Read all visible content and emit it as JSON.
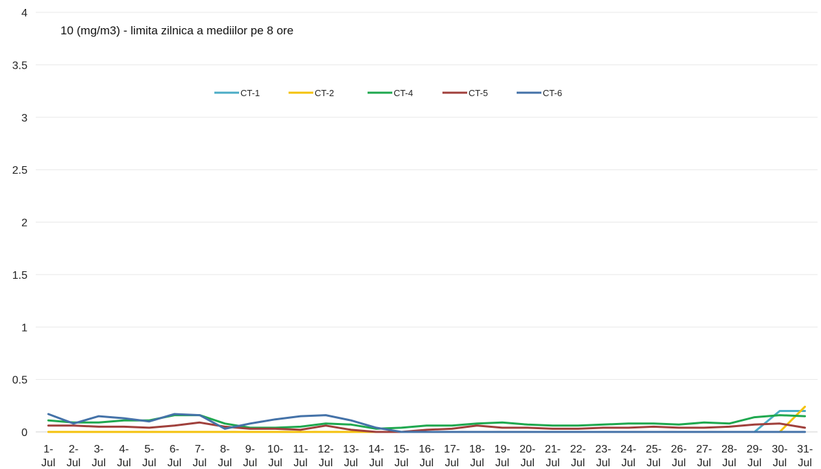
{
  "chart_data": {
    "type": "line",
    "annotation": "10 (mg/m3) - limita zilnica a mediilor pe 8 ore",
    "ylim": [
      0,
      4
    ],
    "yticks": [
      "0",
      "0.5",
      "1",
      "1.5",
      "2",
      "2.5",
      "3",
      "3.5",
      "4"
    ],
    "grid": true,
    "legend_position": "top-center",
    "categories": [
      "1-Jul",
      "2-Jul",
      "3-Jul",
      "4-Jul",
      "5-Jul",
      "6-Jul",
      "7-Jul",
      "8-Jul",
      "9-Jul",
      "10-Jul",
      "11-Jul",
      "12-Jul",
      "13-Jul",
      "14-Jul",
      "15-Jul",
      "16-Jul",
      "17-Jul",
      "18-Jul",
      "19-Jul",
      "20-Jul",
      "21-Jul",
      "22-Jul",
      "23-Jul",
      "24-Jul",
      "25-Jul",
      "26-Jul",
      "27-Jul",
      "28-Jul",
      "29-Jul",
      "30-Jul",
      "31-Jul"
    ],
    "tick_labels": [
      [
        "1-",
        "Jul"
      ],
      [
        "2-",
        "Jul"
      ],
      [
        "3-",
        "Jul"
      ],
      [
        "4-",
        "Jul"
      ],
      [
        "5-",
        "Jul"
      ],
      [
        "6-",
        "Jul"
      ],
      [
        "7-",
        "Jul"
      ],
      [
        "8-",
        "Jul"
      ],
      [
        "9-",
        "Jul"
      ],
      [
        "10-",
        "Jul"
      ],
      [
        "11-",
        "Jul"
      ],
      [
        "12-",
        "Jul"
      ],
      [
        "13-",
        "Jul"
      ],
      [
        "14-",
        "Jul"
      ],
      [
        "15-",
        "Jul"
      ],
      [
        "16-",
        "Jul"
      ],
      [
        "17-",
        "Jul"
      ],
      [
        "18-",
        "Jul"
      ],
      [
        "19-",
        "Jul"
      ],
      [
        "20-",
        "Jul"
      ],
      [
        "21-",
        "Jul"
      ],
      [
        "22-",
        "Jul"
      ],
      [
        "23-",
        "Jul"
      ],
      [
        "24-",
        "Jul"
      ],
      [
        "25-",
        "Jul"
      ],
      [
        "26-",
        "Jul"
      ],
      [
        "27-",
        "Jul"
      ],
      [
        "28-",
        "Jul"
      ],
      [
        "29-",
        "Jul"
      ],
      [
        "30-",
        "Jul"
      ],
      [
        "31-",
        "Jul"
      ]
    ],
    "series": [
      {
        "name": "CT-1",
        "color": "#4BACC6",
        "values": [
          null,
          null,
          null,
          null,
          null,
          null,
          null,
          null,
          null,
          null,
          null,
          null,
          null,
          null,
          null,
          null,
          null,
          null,
          null,
          null,
          null,
          null,
          null,
          null,
          null,
          null,
          null,
          null,
          0.0,
          0.2,
          0.2
        ]
      },
      {
        "name": "CT-2",
        "color": "#F4C20D",
        "values": [
          0.0,
          0.0,
          0.0,
          0.0,
          0.0,
          0.0,
          0.0,
          0.0,
          0.0,
          0.0,
          0.0,
          0.0,
          0.0,
          0.0,
          0.0,
          0.0,
          0.0,
          0.0,
          0.0,
          0.0,
          0.0,
          0.0,
          0.0,
          0.0,
          0.0,
          0.0,
          0.0,
          0.0,
          0.0,
          0.0,
          0.24
        ]
      },
      {
        "name": "CT-4",
        "color": "#1FA84F",
        "values": [
          0.11,
          0.09,
          0.09,
          0.11,
          0.11,
          0.16,
          0.16,
          0.08,
          0.04,
          0.04,
          0.05,
          0.08,
          0.07,
          0.03,
          0.04,
          0.06,
          0.06,
          0.08,
          0.09,
          0.07,
          0.06,
          0.06,
          0.07,
          0.08,
          0.08,
          0.07,
          0.09,
          0.08,
          0.14,
          0.16,
          0.15
        ]
      },
      {
        "name": "CT-5",
        "color": "#A0403C",
        "values": [
          0.06,
          0.06,
          0.05,
          0.05,
          0.04,
          0.06,
          0.09,
          0.05,
          0.03,
          0.03,
          0.02,
          0.06,
          0.02,
          0.0,
          0.0,
          0.02,
          0.03,
          0.06,
          0.04,
          0.04,
          0.03,
          0.03,
          0.04,
          0.04,
          0.05,
          0.04,
          0.04,
          0.05,
          0.07,
          0.08,
          0.04
        ]
      },
      {
        "name": "CT-6",
        "color": "#4472A8",
        "values": [
          0.17,
          0.08,
          0.15,
          0.13,
          0.1,
          0.17,
          0.16,
          0.03,
          0.08,
          0.12,
          0.15,
          0.16,
          0.11,
          0.04,
          0.0,
          0.0,
          0.0,
          0.0,
          0.0,
          0.0,
          0.0,
          0.0,
          0.0,
          0.0,
          0.0,
          0.0,
          0.0,
          0.0,
          0.0,
          0.0,
          0.0
        ]
      }
    ]
  }
}
